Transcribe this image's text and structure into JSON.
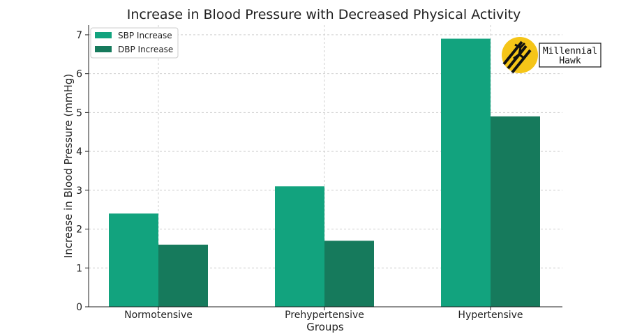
{
  "chart_data": {
    "type": "bar",
    "title": "Increase in Blood Pressure with Decreased Physical Activity",
    "xlabel": "Groups",
    "ylabel": "Increase in Blood Pressure (mmHg)",
    "categories": [
      "Normotensive",
      "Prehypertensive",
      "Hypertensive"
    ],
    "series": [
      {
        "name": "SBP Increase",
        "values": [
          2.4,
          3.1,
          6.9
        ],
        "color": "#12a37e"
      },
      {
        "name": "DBP Increase",
        "values": [
          1.6,
          1.7,
          4.9
        ],
        "color": "#167a5c"
      }
    ],
    "ylim": [
      0,
      7.25
    ],
    "yticks": [
      0,
      1,
      2,
      3,
      4,
      5,
      6,
      7
    ],
    "grid": true,
    "legend_position": "top-left"
  },
  "logo": {
    "line1": "Millennial",
    "line2": "Hawk",
    "accent": "#f5c518"
  }
}
